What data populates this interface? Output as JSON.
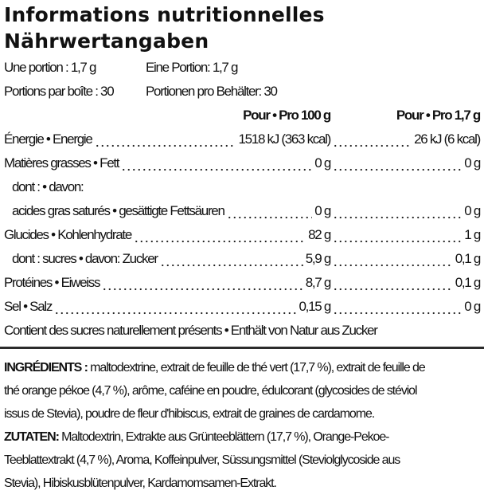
{
  "title_fr": "Informations nutritionnelles",
  "title_de": "Nährwertangaben",
  "serving": {
    "fr": "Une portion : 1,7 g",
    "de": "Eine Portion: 1,7 g",
    "count_fr": "Portions par boîte : 30",
    "count_de": "Portionen pro Behälter: 30"
  },
  "header": {
    "per100": "Pour • Pro 100 g",
    "perServing": "Pour • Pro 1,7 g"
  },
  "rows": [
    {
      "label": "Énergie • Energie",
      "v1": "1518 kJ (363 kcal)",
      "v2": "26 kJ (6 kcal)"
    },
    {
      "label": "Matières grasses • Fett",
      "v1": "0 g",
      "v2": "0 g"
    },
    {
      "label": "dont : • davon:"
    },
    {
      "label": "acides gras saturés • gesättigte Fettsäuren",
      "v1": "0 g",
      "v2": "0 g"
    },
    {
      "label": "Glucides • Kohlenhydrate",
      "v1": "82 g",
      "v2": "1 g"
    },
    {
      "label": "dont : sucres • davon: Zucker",
      "v1": "5,9 g",
      "v2": "0,1 g"
    },
    {
      "label": "Protéines • Eiweiss",
      "v1": "8,7 g",
      "v2": "0,1 g"
    },
    {
      "label": "Sel • Salz",
      "v1": "0,15 g",
      "v2": "0 g"
    }
  ],
  "note": "Contient des sucres naturellement présents • Enthält von Natur aus Zucker",
  "ingredients": {
    "fr_label": "INGRÉDIENTS :",
    "fr_lines": [
      " maltodextrine, extrait de feuille de thé vert (17,7 %), extrait de feuille de",
      "thé orange pékoe (4,7 %), arôme, caféine en poudre, édulcorant (glycosides de stéviol",
      "issus de Stevia), poudre de fleur d'hibiscus, extrait de graines de cardamome."
    ],
    "de_label": "ZUTATEN:",
    "de_lines": [
      " Maltodextrin, Extrakte aus Grünteeblättern (17,7 %), Orange-Pekoe-",
      "Teeblattextrakt (4,7 %), Aroma, Koffeinpulver, Süssungsmittel (Steviolglycoside aus",
      "Stevia), Hibiskusblütenpulver, Kardamomsamen-Extrakt."
    ]
  }
}
